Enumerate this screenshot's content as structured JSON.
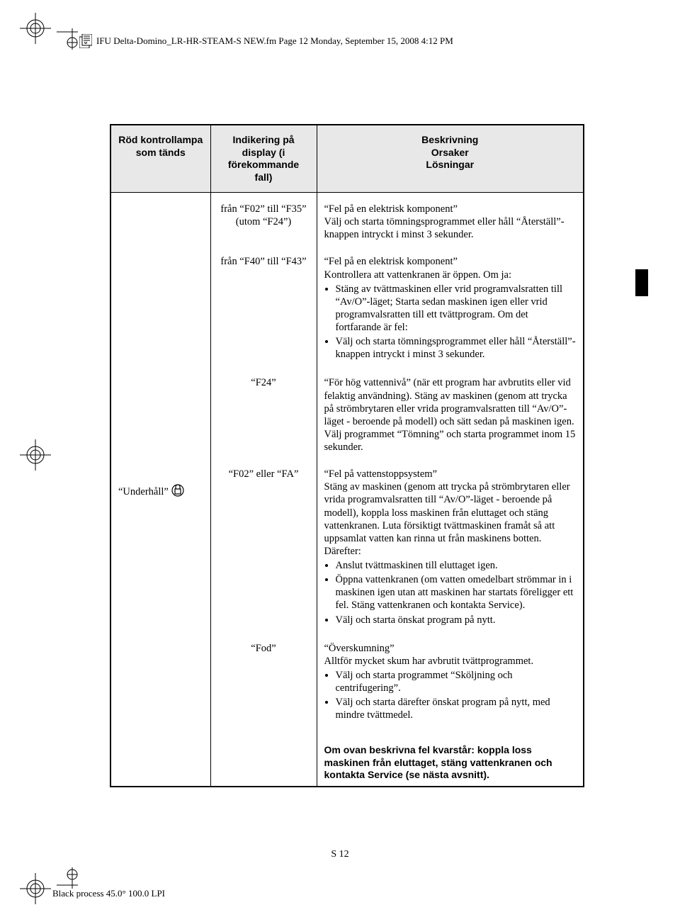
{
  "crop_color": "#000000",
  "header": {
    "text": "IFU Delta-Domino_LR-HR-STEAM-S NEW.fm  Page 12  Monday, September 15, 2008  4:12 PM"
  },
  "table": {
    "headers": {
      "c1": "Röd kontrollampa som tänds",
      "c2": "Indikering på display (i förekommande fall)",
      "c3": "Beskrivning\nOrsaker\nLösningar"
    },
    "col1_label": "“Underhåll”",
    "rows": [
      {
        "code": "från “F02” till “F35” (utom “F24”)",
        "title": "“Fel på en elektrisk komponent”",
        "para": "Välj och starta tömningsprogrammet eller håll “Återställ”-knappen intryckt i minst 3 sekunder.",
        "bullets": []
      },
      {
        "code": "från “F40” till “F43”",
        "title": "“Fel på en elektrisk komponent”",
        "para": "Kontrollera att vattenkranen är öppen. Om ja:",
        "bullets": [
          "Stäng av tvättmaskinen eller vrid programvalsratten till “Av/O”-läget; Starta sedan maskinen igen eller vrid programvalsratten till ett tvättprogram. Om det fortfarande är fel:",
          "Välj och starta tömningsprogrammet eller håll “Återställ”-knappen intryckt i minst 3 sekunder."
        ]
      },
      {
        "code": "“F24”",
        "title": "",
        "para": "“För hög vattennivå” (när ett program har avbrutits eller vid felaktig användning). Stäng av maskinen (genom att trycka på strömbrytaren eller vrida programvalsratten till “Av/O”-läget - beroende på modell) och sätt sedan på maskinen igen. Välj programmet “Tömning” och starta programmet inom 15 sekunder.",
        "bullets": []
      },
      {
        "code": "“F02” eller “FA”",
        "title": "“Fel på vattenstoppsystem”",
        "para": "Stäng av maskinen (genom att trycka på strömbrytaren eller vrida programvalsratten till “Av/O”-läget - beroende på modell), koppla loss maskinen från eluttaget och stäng vattenkranen. Luta försiktigt tvättmaskinen framåt så att uppsamlat vatten kan rinna ut från maskinens botten. Därefter:",
        "bullets": [
          "Anslut tvättmaskinen till eluttaget igen.",
          "Öppna vattenkranen (om vatten omedelbart strömmar in i maskinen igen utan att maskinen har startats föreligger ett fel. Stäng vattenkranen och kontakta Service).",
          "Välj och starta önskat program på nytt."
        ]
      },
      {
        "code": "“Fod”",
        "title": "“Överskumning”",
        "para": "Alltför mycket skum har avbrutit tvättprogrammet.",
        "bullets": [
          "Välj och starta programmet “Sköljning och centrifugering”.",
          "Välj och starta därefter önskat program på nytt, med mindre tvättmedel."
        ]
      }
    ],
    "final_note": "Om ovan beskrivna fel kvarstår: koppla loss maskinen från eluttaget, stäng vattenkranen och kontakta Service (se nästa avsnitt)."
  },
  "page_number": "S 12",
  "footer": "Black process 45.0° 100.0 LPI"
}
